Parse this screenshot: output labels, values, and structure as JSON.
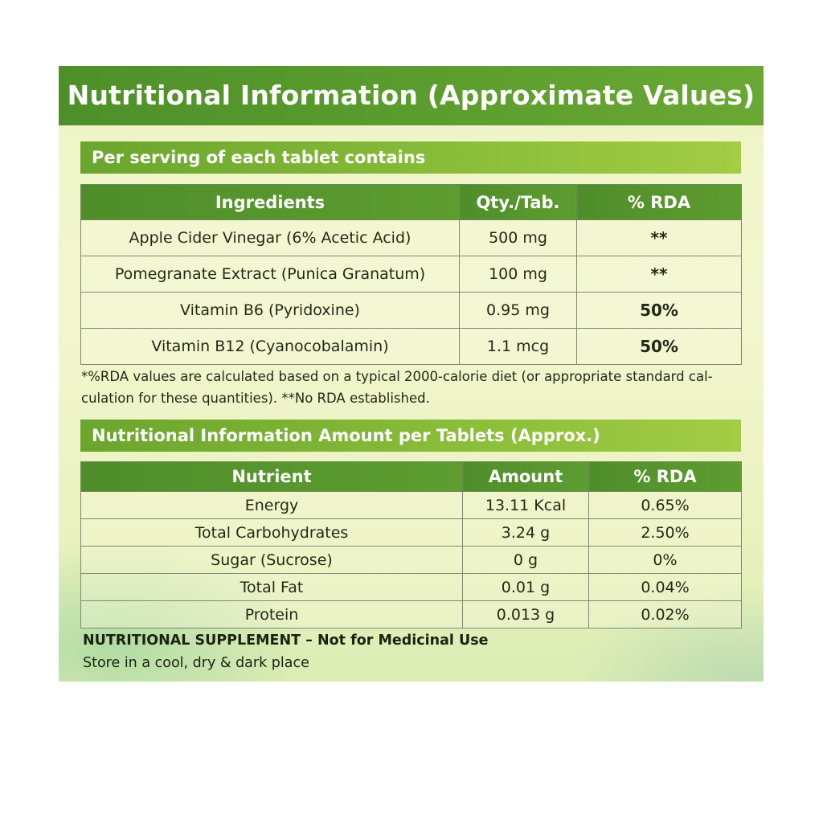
{
  "title": "Nutritional Information (Approximate Values)",
  "section1": {
    "heading": "Per serving of each tablet contains",
    "columns": [
      "Ingredients",
      "Qty./Tab.",
      "% RDA"
    ],
    "rows": [
      {
        "ingredient": "Apple Cider Vinegar (6% Acetic Acid)",
        "qty": "500 mg",
        "rda": "**"
      },
      {
        "ingredient": "Pomegranate Extract (Punica Granatum)",
        "qty": "100 mg",
        "rda": "**"
      },
      {
        "ingredient": "Vitamin B6 (Pyridoxine)",
        "qty": "0.95 mg",
        "rda": "50%"
      },
      {
        "ingredient": "Vitamin B12 (Cyanocobalamin)",
        "qty": "1.1 mcg",
        "rda": "50%"
      }
    ],
    "footnote_line1": "*%RDA values are calculated based on a typical 2000-calorie diet (or appropriate standard cal-",
    "footnote_line2": "culation for these quantities).  **No RDA established."
  },
  "section2": {
    "heading": "Nutritional Information Amount per Tablets (Approx.)",
    "columns": [
      "Nutrient",
      "Amount",
      "% RDA"
    ],
    "rows": [
      {
        "nutrient": "Energy",
        "amount": "13.11 Kcal",
        "rda": "0.65%"
      },
      {
        "nutrient": "Total Carbohydrates",
        "amount": "3.24 g",
        "rda": "2.50%"
      },
      {
        "nutrient": "Sugar (Sucrose)",
        "amount": "0 g",
        "rda": "0%"
      },
      {
        "nutrient": "Total Fat",
        "amount": "0.01 g",
        "rda": "0.04%"
      },
      {
        "nutrient": "Protein",
        "amount": "0.013 g",
        "rda": "0.02%"
      }
    ]
  },
  "footer": {
    "supplement": "NUTRITIONAL SUPPLEMENT – Not for Medicinal Use",
    "storage": "Store in a cool, dry & dark place"
  }
}
